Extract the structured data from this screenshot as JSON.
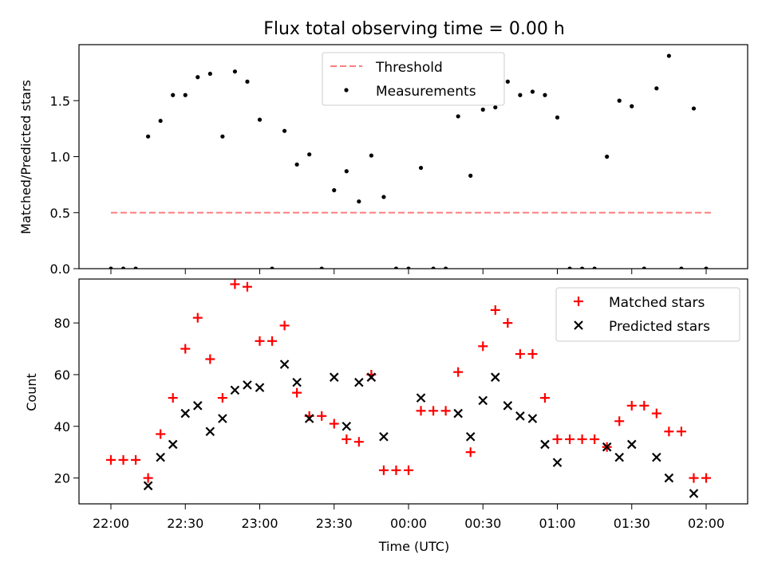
{
  "chart_data": [
    {
      "type": "scatter",
      "title": "Flux total observing time = 0.00 h",
      "xlabel": "",
      "ylabel": "Matched/Predicted stars",
      "ylim": [
        0,
        2.0
      ],
      "y_ticks": [
        "0.0",
        "0.5",
        "1.0",
        "1.5"
      ],
      "y_tick_values": [
        0,
        0.5,
        1.0,
        1.5
      ],
      "legend_position": "top-center",
      "threshold": {
        "name": "Threshold",
        "value": 0.5,
        "x_start": "22:00",
        "x_end": "02:02",
        "color": "#ff7f7f"
      },
      "series": [
        {
          "name": "Measurements",
          "color": "#000000",
          "x": [
            "22:00",
            "22:05",
            "22:10",
            "22:15",
            "22:20",
            "22:25",
            "22:30",
            "22:35",
            "22:40",
            "22:45",
            "22:50",
            "22:55",
            "23:00",
            "23:05",
            "23:10",
            "23:15",
            "23:20",
            "23:25",
            "23:30",
            "23:35",
            "23:40",
            "23:45",
            "23:50",
            "23:55",
            "00:00",
            "00:05",
            "00:10",
            "00:15",
            "00:20",
            "00:25",
            "00:30",
            "00:35",
            "00:40",
            "00:45",
            "00:50",
            "00:55",
            "01:00",
            "01:05",
            "01:10",
            "01:15",
            "01:20",
            "01:25",
            "01:30",
            "01:35",
            "01:40",
            "01:45",
            "01:50",
            "01:55",
            "02:00"
          ],
          "y": [
            0,
            0,
            0,
            1.18,
            1.32,
            1.55,
            1.55,
            1.71,
            1.74,
            1.18,
            1.76,
            1.67,
            1.33,
            0,
            1.23,
            0.93,
            1.02,
            0,
            0.7,
            0.87,
            0.6,
            1.01,
            0.64,
            0,
            0,
            0.9,
            0,
            0,
            1.36,
            0.83,
            1.42,
            1.44,
            1.67,
            1.55,
            1.58,
            1.55,
            1.35,
            0,
            0,
            0,
            1.0,
            1.5,
            1.45,
            0,
            1.61,
            1.9,
            0,
            1.43,
            0
          ]
        }
      ]
    },
    {
      "type": "scatter",
      "title": "",
      "xlabel": "Time (UTC)",
      "ylabel": "Count",
      "ylim": [
        10,
        97
      ],
      "y_ticks": [
        "20",
        "40",
        "60",
        "80"
      ],
      "y_tick_values": [
        20,
        40,
        60,
        80
      ],
      "x_ticks": [
        "22:00",
        "22:30",
        "23:00",
        "23:30",
        "00:00",
        "00:30",
        "01:00",
        "01:30",
        "02:00"
      ],
      "legend_position": "top-right",
      "series": [
        {
          "name": "Matched stars",
          "marker": "plus",
          "color": "#ff0000",
          "x": [
            "22:00",
            "22:05",
            "22:10",
            "22:15",
            "22:20",
            "22:25",
            "22:30",
            "22:35",
            "22:40",
            "22:45",
            "22:50",
            "22:55",
            "23:00",
            "23:05",
            "23:10",
            "23:15",
            "23:20",
            "23:25",
            "23:30",
            "23:35",
            "23:40",
            "23:45",
            "23:50",
            "23:55",
            "00:00",
            "00:05",
            "00:10",
            "00:15",
            "00:20",
            "00:25",
            "00:30",
            "00:35",
            "00:40",
            "00:45",
            "00:50",
            "00:55",
            "01:00",
            "01:05",
            "01:10",
            "01:15",
            "01:20",
            "01:25",
            "01:30",
            "01:35",
            "01:40",
            "01:45",
            "01:50",
            "01:55",
            "02:00"
          ],
          "y": [
            27,
            27,
            27,
            20,
            37,
            51,
            70,
            82,
            66,
            51,
            95,
            94,
            73,
            73,
            79,
            53,
            44,
            44,
            41,
            35,
            34,
            60,
            23,
            23,
            23,
            46,
            46,
            46,
            61,
            30,
            71,
            85,
            80,
            68,
            68,
            51,
            35,
            35,
            35,
            35,
            32,
            42,
            48,
            48,
            45,
            38,
            38,
            20,
            20
          ]
        },
        {
          "name": "Predicted stars",
          "marker": "x",
          "color": "#000000",
          "x": [
            "22:15",
            "22:20",
            "22:25",
            "22:30",
            "22:35",
            "22:40",
            "22:45",
            "22:50",
            "22:55",
            "23:00",
            "23:10",
            "23:15",
            "23:20",
            "23:30",
            "23:35",
            "23:40",
            "23:45",
            "23:50",
            "00:05",
            "00:20",
            "00:25",
            "00:30",
            "00:35",
            "00:40",
            "00:45",
            "00:50",
            "00:55",
            "01:00",
            "01:20",
            "01:25",
            "01:30",
            "01:40",
            "01:45",
            "01:55"
          ],
          "y": [
            17,
            28,
            33,
            45,
            48,
            38,
            43,
            54,
            56,
            55,
            64,
            57,
            43,
            59,
            40,
            57,
            59,
            36,
            51,
            45,
            36,
            50,
            59,
            48,
            44,
            43,
            33,
            26,
            32,
            28,
            33,
            28,
            20,
            14
          ]
        }
      ]
    }
  ]
}
